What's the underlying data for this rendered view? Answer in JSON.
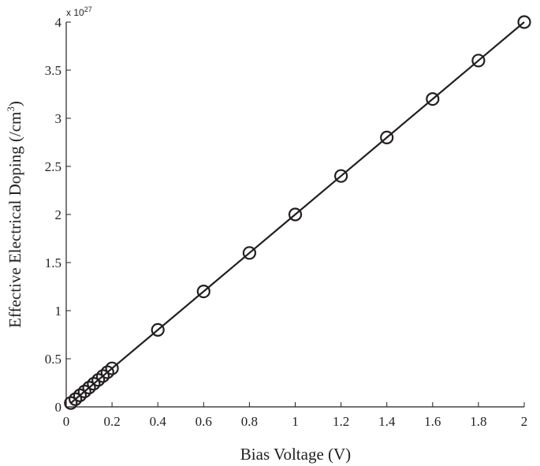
{
  "chart_data": {
    "type": "line",
    "title": "",
    "xlabel": "Bias Voltage (V)",
    "ylabel_main": "Effective Electrical Doping (/cm",
    "ylabel_sup": "3",
    "ylabel_end": ")",
    "y_multiplier_base": "x 10",
    "y_multiplier_exp": "27",
    "xlim": [
      0,
      2
    ],
    "ylim": [
      0,
      4
    ],
    "x_ticks": [
      0,
      0.2,
      0.4,
      0.6,
      0.8,
      1,
      1.2,
      1.4,
      1.6,
      1.8,
      2
    ],
    "x_tick_labels": [
      "0",
      "0.2",
      "0.4",
      "0.6",
      "0.8",
      "1",
      "1.2",
      "1.4",
      "1.6",
      "1.8",
      "2"
    ],
    "y_ticks": [
      0,
      0.5,
      1,
      1.5,
      2,
      2.5,
      3,
      3.5,
      4
    ],
    "y_tick_labels": [
      "0",
      "0.5",
      "1",
      "1.5",
      "2",
      "2.5",
      "3",
      "3.5",
      "4"
    ],
    "grid": false,
    "legend": "none",
    "line_color": "#231f20",
    "series": [
      {
        "marker": "circle-open",
        "x": [
          0.02,
          0.04,
          0.06,
          0.08,
          0.1,
          0.12,
          0.14,
          0.16,
          0.18,
          0.2,
          0.4,
          0.6,
          0.8,
          1.0,
          1.2,
          1.4,
          1.6,
          1.8,
          2.0
        ],
        "y": [
          0.04,
          0.08,
          0.12,
          0.16,
          0.2,
          0.24,
          0.28,
          0.32,
          0.36,
          0.4,
          0.8,
          1.2,
          1.6,
          2.0,
          2.4,
          2.8,
          3.2,
          3.6,
          4.0
        ]
      }
    ]
  }
}
